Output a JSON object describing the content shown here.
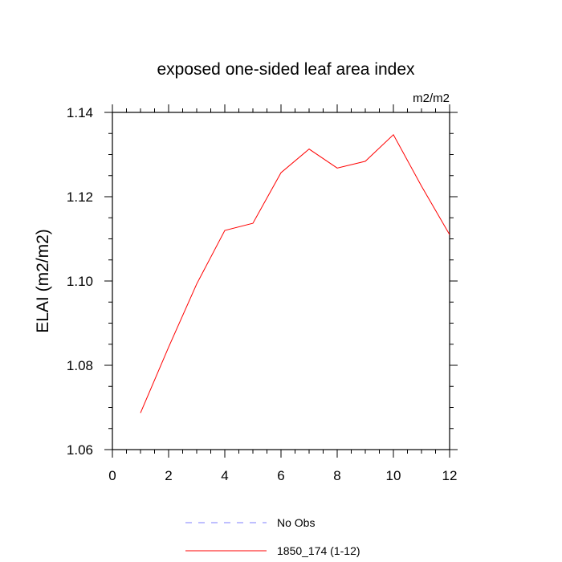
{
  "chart_data": {
    "type": "line",
    "title": "exposed one-sided leaf area index",
    "units_label": "m2/m2",
    "xlabel": "",
    "ylabel": "ELAI  (m2/m2)",
    "xlim": [
      0,
      12
    ],
    "ylim": [
      1.06,
      1.14
    ],
    "x_ticks": [
      0,
      2,
      4,
      6,
      8,
      10,
      12
    ],
    "x_tick_labels": [
      "0",
      "2",
      "4",
      "6",
      "8",
      "10",
      "12"
    ],
    "y_ticks": [
      1.06,
      1.08,
      1.1,
      1.12,
      1.14
    ],
    "y_tick_labels": [
      "1.06",
      "1.08",
      "1.10",
      "1.12",
      "1.14"
    ],
    "grid": false,
    "legend_position": "bottom-center",
    "series": [
      {
        "name": "No Obs",
        "color": "#7f7fff",
        "dash": "dashed",
        "x": [],
        "values": []
      },
      {
        "name": "1850_174 (1-12)",
        "color": "#ff0000",
        "dash": "solid",
        "x": [
          1,
          2,
          3,
          4,
          5,
          6,
          7,
          8,
          9,
          10,
          11,
          12
        ],
        "values": [
          1.0687,
          1.0843,
          1.0993,
          1.112,
          1.1137,
          1.1257,
          1.1313,
          1.1268,
          1.1284,
          1.1347,
          1.1225,
          1.111
        ]
      }
    ]
  }
}
